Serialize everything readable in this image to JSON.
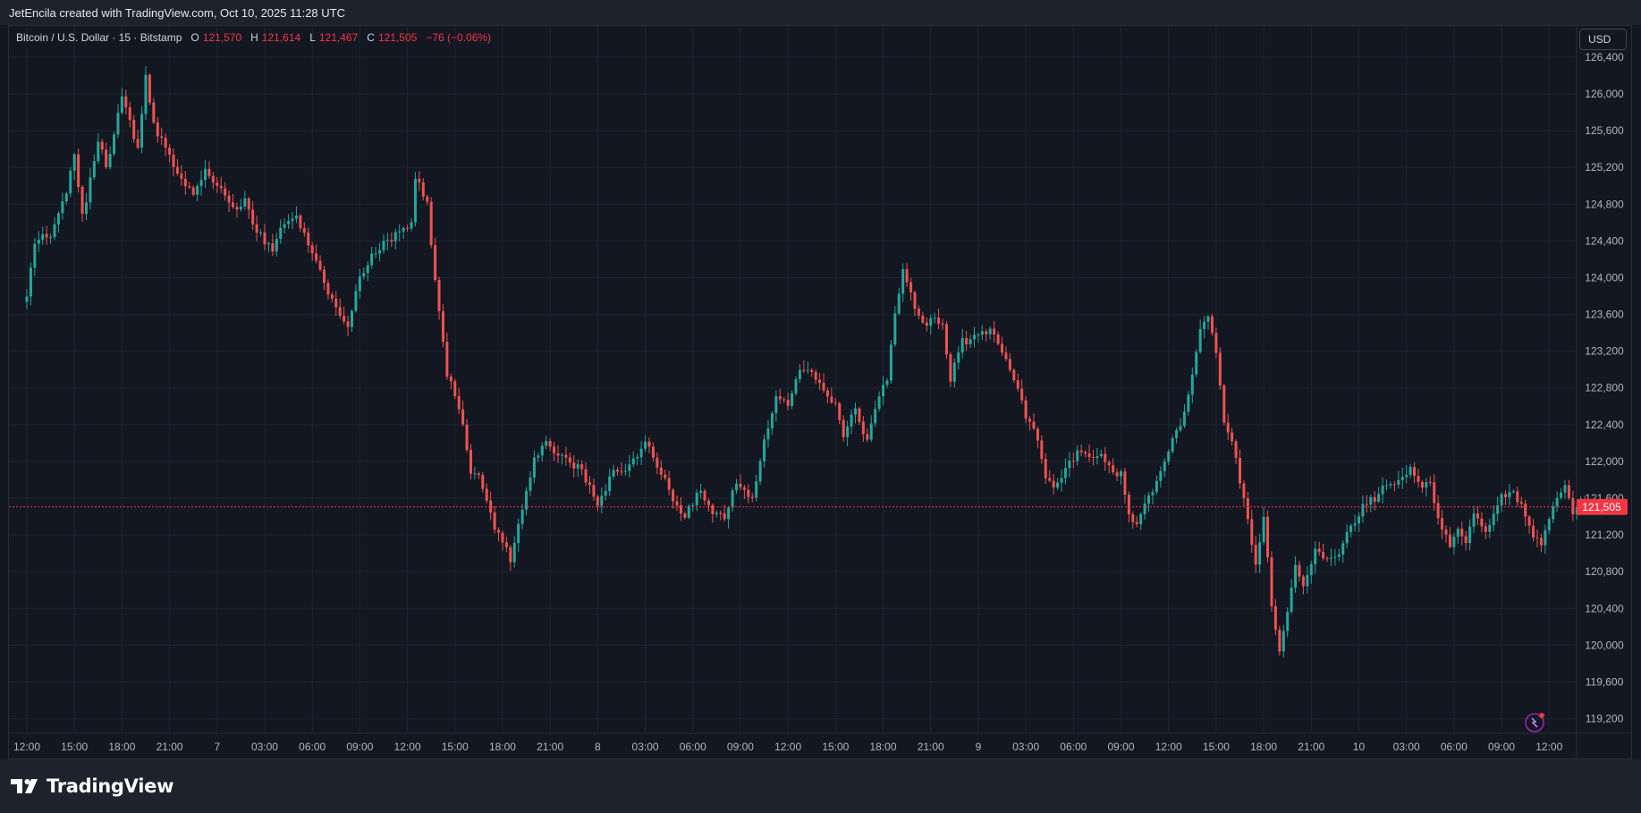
{
  "header": {
    "credit": "JetEncila created with TradingView.com, Oct 10, 2025 11:28 UTC"
  },
  "legend": {
    "symbol": "Bitcoin / U.S. Dollar · 15 · Bitstamp",
    "open_label": "O",
    "open": "121,570",
    "high_label": "H",
    "high": "121,614",
    "low_label": "L",
    "low": "121,467",
    "close_label": "C",
    "close": "121,505",
    "change": "−76 (−0.06%)"
  },
  "currency_button": "USD",
  "footer": {
    "brand": "TradingView"
  },
  "colors": {
    "background": "#131722",
    "up": "#26a69a",
    "down": "#ef5350",
    "grid": "#1f2433",
    "price_line": "#f23645"
  },
  "chart_data": {
    "type": "candlestick",
    "symbol": "BTCUSD",
    "exchange": "Bitstamp",
    "interval_minutes": 15,
    "y_ticks": [
      119200,
      119600,
      120000,
      120400,
      120800,
      121200,
      121600,
      122000,
      122400,
      122800,
      123200,
      123600,
      124000,
      124400,
      124800,
      125200,
      125600,
      126000,
      126400
    ],
    "y_tick_labels": [
      "119,200",
      "119,600",
      "120,000",
      "120,400",
      "120,800",
      "121,200",
      "121,600",
      "122,000",
      "122,400",
      "122,800",
      "123,200",
      "123,600",
      "124,000",
      "124,400",
      "124,800",
      "125,200",
      "125,600",
      "126,000",
      "126,400"
    ],
    "ylim": [
      119040,
      126740
    ],
    "x_labels": [
      "12:00",
      "15:00",
      "18:00",
      "21:00",
      "7",
      "03:00",
      "06:00",
      "09:00",
      "12:00",
      "15:00",
      "18:00",
      "21:00",
      "8",
      "03:00",
      "06:00",
      "09:00",
      "12:00",
      "15:00",
      "18:00",
      "21:00",
      "9",
      "03:00",
      "06:00",
      "09:00",
      "12:00",
      "15:00",
      "18:00",
      "21:00",
      "10",
      "03:00",
      "06:00",
      "09:00",
      "12:00"
    ],
    "x_label_bar_index": [
      0,
      12,
      24,
      36,
      48,
      60,
      72,
      84,
      96,
      108,
      120,
      132,
      144,
      156,
      168,
      180,
      192,
      204,
      216,
      228,
      240,
      252,
      264,
      276,
      288,
      300,
      312,
      324,
      336,
      348,
      360,
      372,
      384
    ],
    "last_price": 121505,
    "last_price_label": "121,505",
    "close_path": [
      [
        0,
        123780
      ],
      [
        2,
        124380
      ],
      [
        6,
        124480
      ],
      [
        10,
        124950
      ],
      [
        12,
        125350
      ],
      [
        14,
        124650
      ],
      [
        18,
        125500
      ],
      [
        20,
        125200
      ],
      [
        24,
        125950
      ],
      [
        28,
        125400
      ],
      [
        30,
        126200
      ],
      [
        32,
        125650
      ],
      [
        34,
        125500
      ],
      [
        38,
        125150
      ],
      [
        42,
        124900
      ],
      [
        45,
        125200
      ],
      [
        48,
        125000
      ],
      [
        52,
        124750
      ],
      [
        55,
        124850
      ],
      [
        58,
        124500
      ],
      [
        62,
        124300
      ],
      [
        64,
        124550
      ],
      [
        68,
        124650
      ],
      [
        72,
        124250
      ],
      [
        76,
        123850
      ],
      [
        78,
        123700
      ],
      [
        81,
        123450
      ],
      [
        84,
        124000
      ],
      [
        88,
        124300
      ],
      [
        94,
        124500
      ],
      [
        97,
        124600
      ],
      [
        98,
        125100
      ],
      [
        101,
        124800
      ],
      [
        103,
        123950
      ],
      [
        106,
        122950
      ],
      [
        109,
        122600
      ],
      [
        112,
        121900
      ],
      [
        114,
        121850
      ],
      [
        118,
        121300
      ],
      [
        120,
        121150
      ],
      [
        122,
        120900
      ],
      [
        125,
        121500
      ],
      [
        128,
        122000
      ],
      [
        131,
        122200
      ],
      [
        135,
        122050
      ],
      [
        138,
        121950
      ],
      [
        140,
        121900
      ],
      [
        144,
        121500
      ],
      [
        148,
        121900
      ],
      [
        152,
        121950
      ],
      [
        156,
        122200
      ],
      [
        160,
        121900
      ],
      [
        163,
        121600
      ],
      [
        166,
        121400
      ],
      [
        170,
        121700
      ],
      [
        173,
        121400
      ],
      [
        176,
        121400
      ],
      [
        179,
        121800
      ],
      [
        183,
        121600
      ],
      [
        186,
        122200
      ],
      [
        189,
        122700
      ],
      [
        192,
        122600
      ],
      [
        195,
        123000
      ],
      [
        198,
        122950
      ],
      [
        201,
        122800
      ],
      [
        204,
        122600
      ],
      [
        206,
        122300
      ],
      [
        209,
        122550
      ],
      [
        212,
        122200
      ],
      [
        215,
        122750
      ],
      [
        217,
        122900
      ],
      [
        219,
        123600
      ],
      [
        221,
        124050
      ],
      [
        223,
        123800
      ],
      [
        226,
        123500
      ],
      [
        229,
        123550
      ],
      [
        231,
        123500
      ],
      [
        233,
        122900
      ],
      [
        236,
        123300
      ],
      [
        239,
        123350
      ],
      [
        243,
        123450
      ],
      [
        246,
        123200
      ],
      [
        249,
        122900
      ],
      [
        252,
        122500
      ],
      [
        255,
        122250
      ],
      [
        257,
        121800
      ],
      [
        259,
        121700
      ],
      [
        262,
        121900
      ],
      [
        265,
        122100
      ],
      [
        268,
        122050
      ],
      [
        271,
        122050
      ],
      [
        274,
        121850
      ],
      [
        276,
        121900
      ],
      [
        278,
        121450
      ],
      [
        280,
        121300
      ],
      [
        283,
        121600
      ],
      [
        286,
        121900
      ],
      [
        289,
        122250
      ],
      [
        292,
        122500
      ],
      [
        294,
        122950
      ],
      [
        296,
        123400
      ],
      [
        298,
        123600
      ],
      [
        300,
        123200
      ],
      [
        302,
        122450
      ],
      [
        304,
        122250
      ],
      [
        306,
        121800
      ],
      [
        308,
        121350
      ],
      [
        310,
        120900
      ],
      [
        312,
        121400
      ],
      [
        314,
        120450
      ],
      [
        316,
        119900
      ],
      [
        318,
        120350
      ],
      [
        320,
        120900
      ],
      [
        322,
        120600
      ],
      [
        325,
        121050
      ],
      [
        328,
        120900
      ],
      [
        331,
        121000
      ],
      [
        334,
        121300
      ],
      [
        337,
        121500
      ],
      [
        340,
        121600
      ],
      [
        343,
        121750
      ],
      [
        346,
        121800
      ],
      [
        349,
        121900
      ],
      [
        352,
        121750
      ],
      [
        354,
        121750
      ],
      [
        356,
        121400
      ],
      [
        359,
        121050
      ],
      [
        361,
        121300
      ],
      [
        363,
        121100
      ],
      [
        365,
        121400
      ],
      [
        368,
        121250
      ],
      [
        371,
        121550
      ],
      [
        374,
        121700
      ],
      [
        377,
        121500
      ],
      [
        379,
        121300
      ],
      [
        382,
        121050
      ],
      [
        384,
        121400
      ],
      [
        386,
        121600
      ],
      [
        388,
        121700
      ],
      [
        390,
        121450
      ],
      [
        392,
        121550
      ],
      [
        393,
        121505
      ]
    ]
  }
}
